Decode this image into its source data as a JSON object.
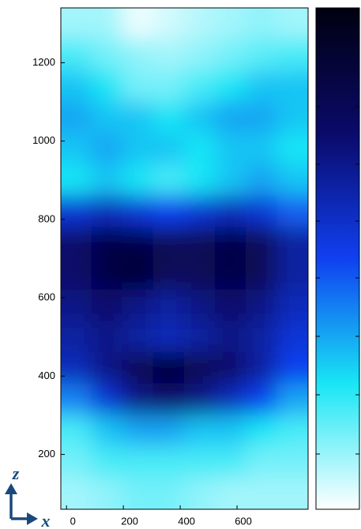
{
  "chart_data": {
    "type": "heatmap",
    "xlabel": "x",
    "ylabel": "z",
    "x": [
      34,
      143,
      251,
      360,
      469,
      578,
      687,
      796
    ],
    "y": [
      1300,
      1220,
      1140,
      1060,
      980,
      900,
      820,
      740,
      660,
      580,
      500,
      420,
      340,
      260,
      180,
      100
    ],
    "z": [
      [
        0.1,
        0.1,
        0.02,
        0.05,
        0.08,
        0.1,
        0.12,
        0.1
      ],
      [
        0.2,
        0.15,
        0.12,
        0.1,
        0.12,
        0.15,
        0.18,
        0.2
      ],
      [
        0.3,
        0.25,
        0.15,
        0.15,
        0.2,
        0.25,
        0.3,
        0.3
      ],
      [
        0.35,
        0.3,
        0.3,
        0.25,
        0.3,
        0.35,
        0.35,
        0.3
      ],
      [
        0.3,
        0.35,
        0.3,
        0.3,
        0.25,
        0.3,
        0.3,
        0.25
      ],
      [
        0.25,
        0.3,
        0.25,
        0.2,
        0.25,
        0.3,
        0.35,
        0.3
      ],
      [
        0.55,
        0.6,
        0.55,
        0.5,
        0.55,
        0.6,
        0.55,
        0.45
      ],
      [
        0.75,
        0.85,
        0.85,
        0.8,
        0.8,
        0.85,
        0.8,
        0.65
      ],
      [
        0.75,
        0.85,
        0.9,
        0.8,
        0.8,
        0.85,
        0.8,
        0.65
      ],
      [
        0.7,
        0.75,
        0.7,
        0.65,
        0.7,
        0.75,
        0.7,
        0.6
      ],
      [
        0.65,
        0.7,
        0.65,
        0.6,
        0.65,
        0.7,
        0.65,
        0.55
      ],
      [
        0.6,
        0.7,
        0.8,
        0.9,
        0.8,
        0.75,
        0.65,
        0.5
      ],
      [
        0.4,
        0.55,
        0.7,
        0.75,
        0.7,
        0.6,
        0.5,
        0.35
      ],
      [
        0.2,
        0.3,
        0.35,
        0.35,
        0.3,
        0.3,
        0.25,
        0.2
      ],
      [
        0.15,
        0.2,
        0.2,
        0.2,
        0.2,
        0.2,
        0.15,
        0.15
      ],
      [
        0.1,
        0.12,
        0.15,
        0.15,
        0.12,
        0.1,
        0.1,
        0.1
      ]
    ],
    "clim": [
      0,
      1
    ],
    "colormap": [
      "#ffffff",
      "#19e6f5",
      "#1040f0",
      "#0a0a6a",
      "#000010"
    ],
    "xlim": [
      -20,
      850
    ],
    "xticks": [
      0,
      200,
      400,
      600
    ],
    "ylim": [
      60,
      1340
    ],
    "yticks": [
      200,
      400,
      600,
      800,
      1000,
      1200
    ]
  }
}
